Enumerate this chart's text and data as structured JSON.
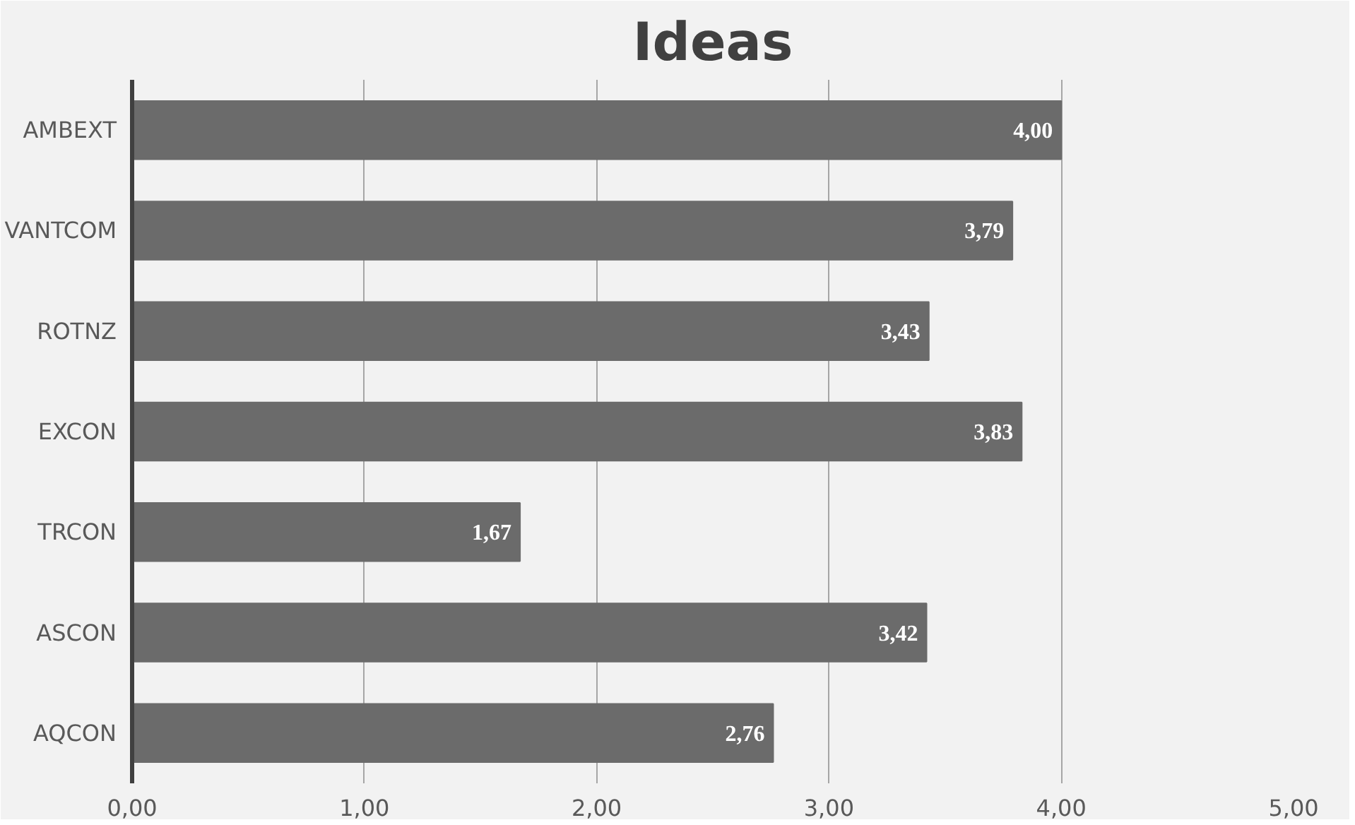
{
  "chart_data": {
    "type": "bar",
    "orientation": "horizontal",
    "title": "Ideas",
    "categories": [
      "AMBEXT",
      "VANTCOM",
      "ROTNZ",
      "EXCON",
      "TRCON",
      "ASCON",
      "AQCON"
    ],
    "values": [
      4.0,
      3.79,
      3.43,
      3.83,
      1.67,
      3.42,
      2.76
    ],
    "value_labels": [
      "4,00",
      "3,79",
      "3,43",
      "3,83",
      "1,67",
      "3,42",
      "2,76"
    ],
    "color": "#6b6b6b",
    "xlim": [
      0,
      5
    ],
    "xticks": [
      {
        "value": 0,
        "label": "0,00"
      },
      {
        "value": 1,
        "label": "1,00"
      },
      {
        "value": 2,
        "label": "2,00"
      },
      {
        "value": 3,
        "label": "3,00"
      },
      {
        "value": 4,
        "label": "4,00"
      },
      {
        "value": 5,
        "label": "5,00"
      }
    ],
    "grid": "x"
  }
}
